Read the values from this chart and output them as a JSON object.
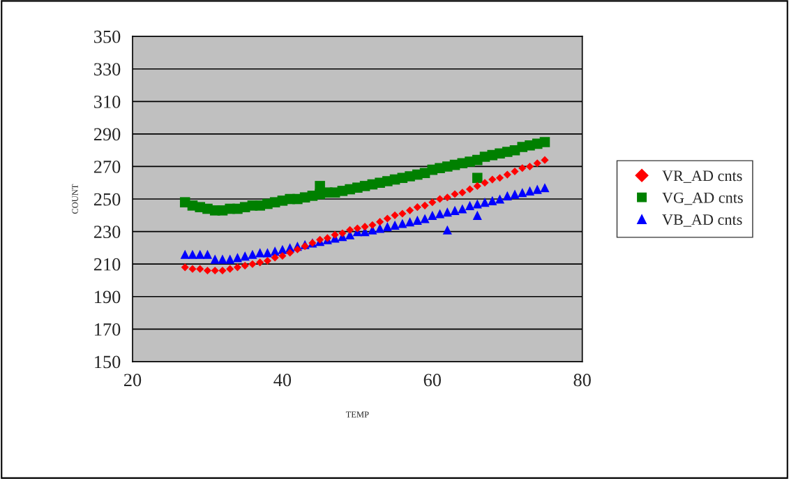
{
  "chart_data": {
    "type": "scatter",
    "xlabel": "TEMP",
    "ylabel": "COUNT",
    "xlim": [
      20,
      80
    ],
    "xticks": [
      20,
      40,
      60,
      80
    ],
    "ylim": [
      150,
      350
    ],
    "yticks": [
      150,
      170,
      190,
      210,
      230,
      250,
      270,
      290,
      310,
      330,
      350
    ],
    "grid": "y",
    "legend": "right",
    "series": [
      {
        "name": "VR_AD cnts",
        "color": "#ff0000",
        "marker": "diamond",
        "x": [
          27,
          28,
          29,
          30,
          31,
          32,
          33,
          34,
          35,
          36,
          37,
          38,
          39,
          40,
          41,
          42,
          43,
          44,
          45,
          46,
          47,
          48,
          49,
          50,
          51,
          52,
          53,
          54,
          55,
          56,
          57,
          58,
          59,
          60,
          61,
          62,
          63,
          64,
          65,
          66,
          67,
          68,
          69,
          70,
          71,
          72,
          73,
          74,
          75
        ],
        "values": [
          208,
          207,
          207,
          206,
          206,
          206,
          207,
          208,
          209,
          210,
          211,
          212,
          214,
          215,
          217,
          219,
          221,
          223,
          225,
          226,
          228,
          229,
          231,
          232,
          233,
          234,
          236,
          238,
          240,
          241,
          243,
          245,
          246,
          248,
          250,
          251,
          253,
          254,
          256,
          258,
          260,
          262,
          263,
          265,
          267,
          269,
          270,
          272,
          274
        ]
      },
      {
        "name": "VG_AD cnts",
        "color": "#008000",
        "marker": "square",
        "x": [
          27,
          28,
          29,
          30,
          31,
          32,
          33,
          34,
          35,
          36,
          37,
          38,
          39,
          40,
          41,
          42,
          43,
          44,
          45,
          46,
          47,
          48,
          49,
          50,
          51,
          52,
          53,
          54,
          55,
          56,
          57,
          58,
          59,
          60,
          61,
          62,
          63,
          64,
          65,
          66,
          67,
          68,
          69,
          70,
          71,
          72,
          73,
          74,
          75,
          45,
          66
        ],
        "values": [
          248,
          246,
          245,
          244,
          243,
          243,
          244,
          244,
          245,
          246,
          246,
          247,
          248,
          249,
          250,
          250,
          251,
          252,
          253,
          254,
          254,
          255,
          256,
          257,
          258,
          259,
          260,
          261,
          262,
          263,
          264,
          265,
          266,
          268,
          269,
          270,
          271,
          272,
          273,
          274,
          276,
          277,
          278,
          279,
          280,
          282,
          283,
          284,
          285,
          258,
          263
        ]
      },
      {
        "name": "VB_AD cnts",
        "color": "#0000ff",
        "marker": "triangle",
        "x": [
          27,
          28,
          29,
          30,
          31,
          32,
          33,
          34,
          35,
          36,
          37,
          38,
          39,
          40,
          41,
          42,
          43,
          44,
          45,
          46,
          47,
          48,
          49,
          50,
          51,
          52,
          53,
          54,
          55,
          56,
          57,
          58,
          59,
          60,
          61,
          62,
          63,
          64,
          65,
          66,
          67,
          68,
          69,
          70,
          71,
          72,
          73,
          74,
          75,
          62,
          66
        ],
        "values": [
          216,
          216,
          216,
          216,
          213,
          213,
          213,
          214,
          215,
          216,
          217,
          217,
          218,
          219,
          220,
          221,
          222,
          223,
          224,
          225,
          226,
          227,
          228,
          230,
          230,
          231,
          232,
          233,
          234,
          235,
          236,
          237,
          238,
          240,
          241,
          242,
          243,
          244,
          246,
          247,
          248,
          249,
          250,
          252,
          253,
          254,
          255,
          256,
          257,
          231,
          240
        ]
      }
    ]
  }
}
